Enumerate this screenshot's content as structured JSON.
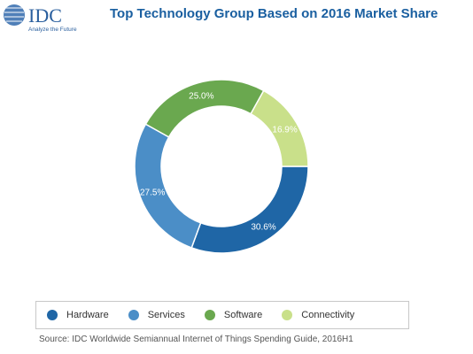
{
  "header": {
    "logo_text": "IDC",
    "logo_tagline": "Analyze the Future",
    "title": "Top Technology Group Based on 2016 Market Share"
  },
  "chart_data": {
    "type": "pie",
    "donut": true,
    "title": "Top Technology Group Based on 2016 Market Share",
    "categories": [
      "Hardware",
      "Services",
      "Software",
      "Connectivity"
    ],
    "values": [
      30.6,
      27.5,
      25.0,
      16.9
    ],
    "labels": [
      "30.6%",
      "27.5%",
      "25.0%",
      "16.9%"
    ],
    "colors": [
      "#1f66a6",
      "#4b8ec7",
      "#6aa84f",
      "#c9e08a"
    ],
    "legend_position": "bottom"
  },
  "legend": {
    "items": [
      {
        "label": "Hardware",
        "color": "#1f66a6"
      },
      {
        "label": "Services",
        "color": "#4b8ec7"
      },
      {
        "label": "Software",
        "color": "#6aa84f"
      },
      {
        "label": "Connectivity",
        "color": "#c9e08a"
      }
    ]
  },
  "footer": {
    "source": "Source: IDC Worldwide Semiannual Internet of Things Spending Guide, 2016H1"
  }
}
